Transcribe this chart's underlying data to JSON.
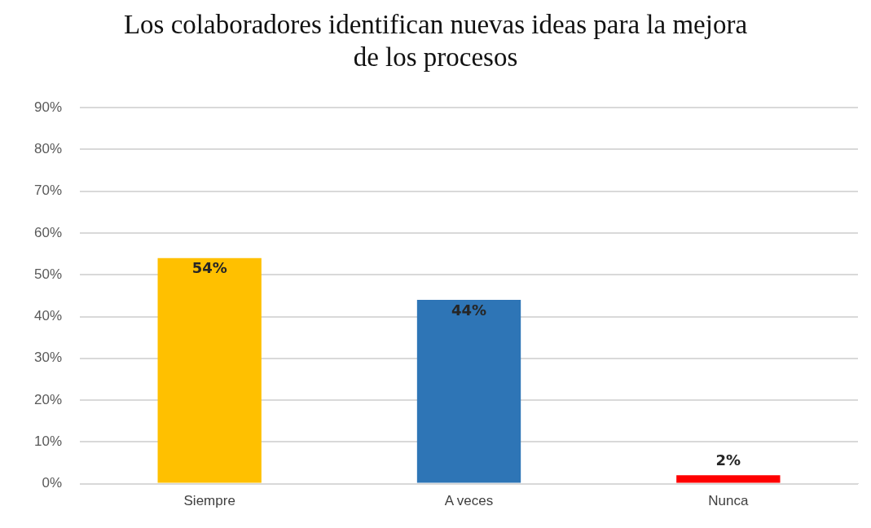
{
  "chart_data": {
    "type": "bar",
    "title": "Los colaboradores identifican nuevas ideas para la mejora de los procesos",
    "categories": [
      "Siempre",
      "A veces",
      "Nunca"
    ],
    "values": [
      54,
      44,
      2
    ],
    "colors": [
      "#ffc000",
      "#2e75b6",
      "#ff0000"
    ],
    "value_labels": [
      "54%",
      "44%",
      "2%"
    ],
    "ylim": [
      0,
      90
    ],
    "yticks": [
      {
        "value": 0,
        "label": "0%"
      },
      {
        "value": 10,
        "label": "10%"
      },
      {
        "value": 20,
        "label": "20%"
      },
      {
        "value": 30,
        "label": "30%"
      },
      {
        "value": 40,
        "label": "40%"
      },
      {
        "value": 50,
        "label": "50%"
      },
      {
        "value": 60,
        "label": "60%"
      },
      {
        "value": 70,
        "label": "70%"
      },
      {
        "value": 80,
        "label": "80%"
      },
      {
        "value": 90,
        "label": "90%"
      }
    ],
    "grid": "y",
    "legend": false
  }
}
